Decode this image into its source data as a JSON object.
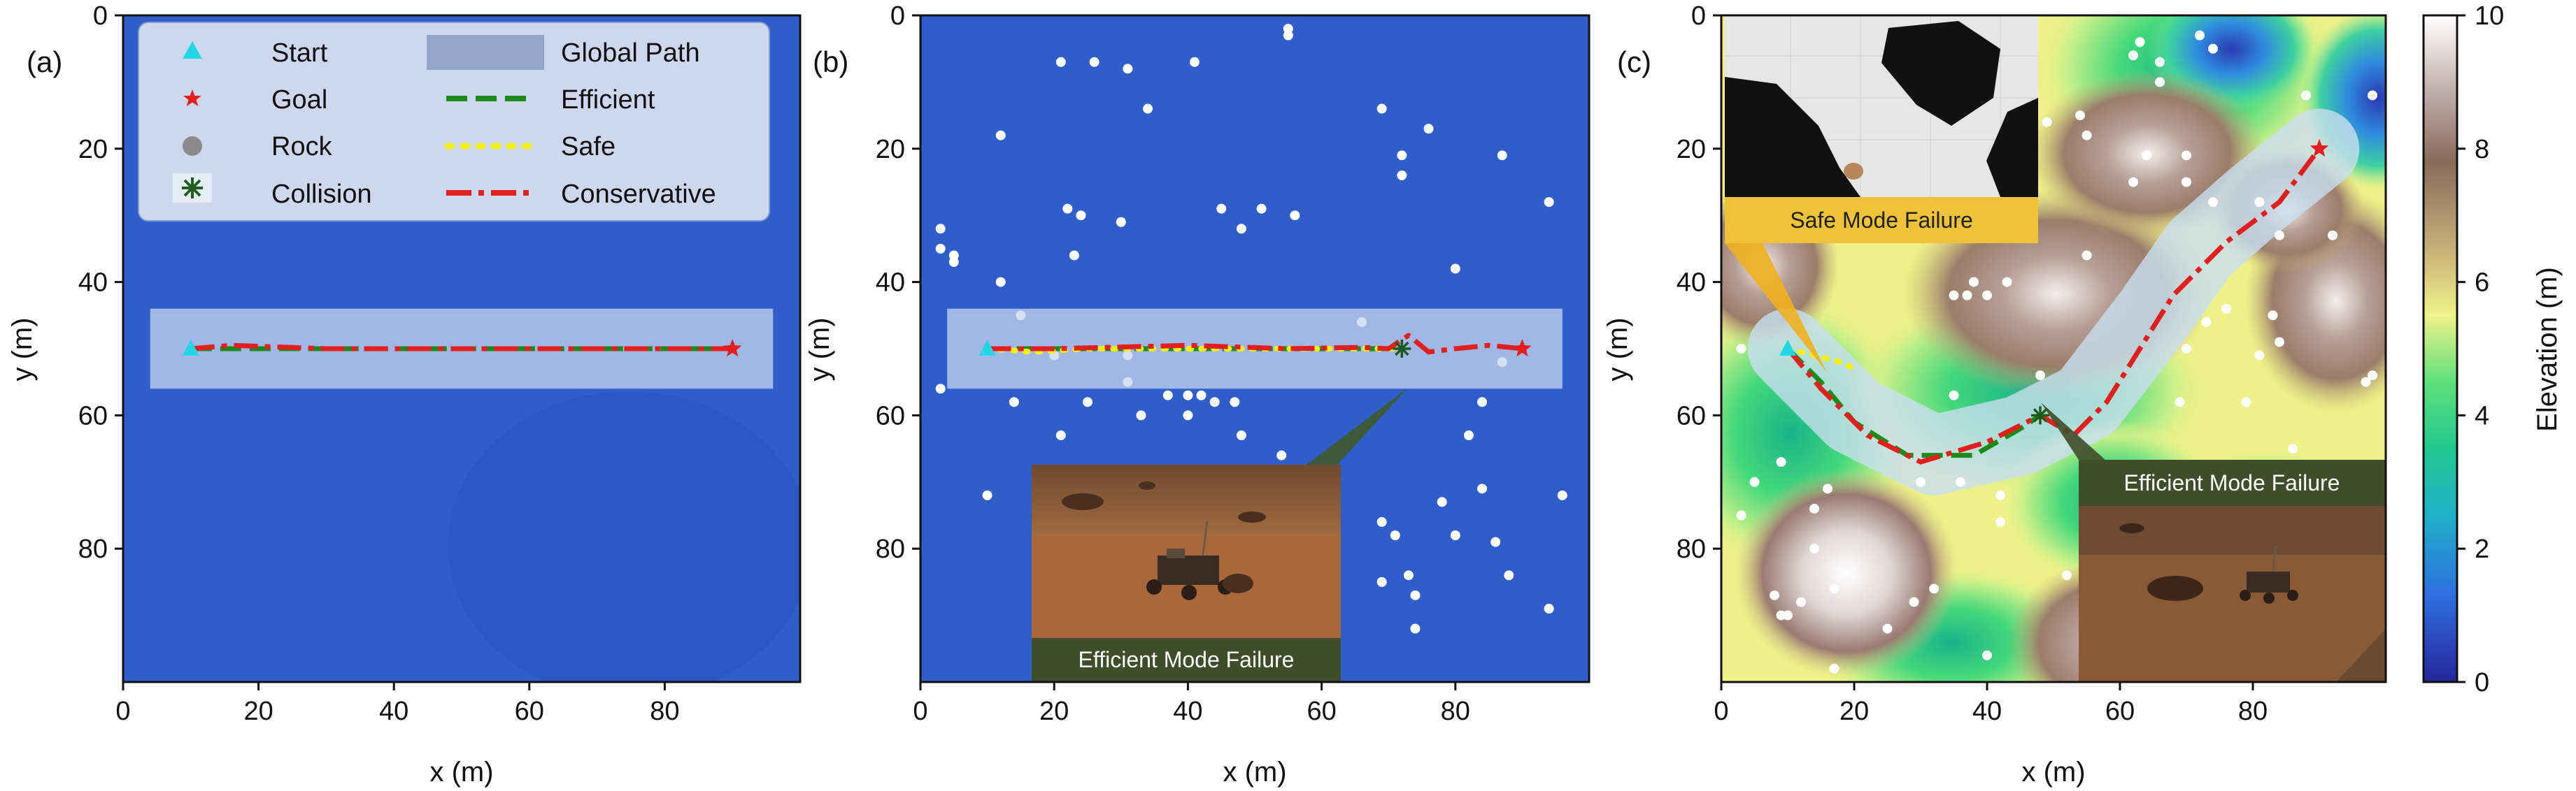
{
  "figure": {
    "colors": {
      "flat_background": "#2f5ec8",
      "path_band": "#c8d6f0",
      "efficient": "#1a8a1a",
      "safe": "#f2ee1a",
      "conservative": "#e21f1f",
      "start": "#22d6e6",
      "goal": "#e21f1f",
      "collision": "#1f5a1f",
      "rock": "#ffffff",
      "efficient_caption_bg": "#3f4d2a",
      "safe_caption_bg": "#f0c23a"
    },
    "legend": {
      "items": [
        {
          "label": "Start",
          "marker": "triangle-icon"
        },
        {
          "label": "Goal",
          "marker": "star-icon"
        },
        {
          "label": "Rock",
          "marker": "circle-icon"
        },
        {
          "label": "Collision",
          "marker": "asterisk-icon"
        },
        {
          "label": "Global Path",
          "marker": "band-icon"
        },
        {
          "label": "Efficient",
          "marker": "dashed-line-icon"
        },
        {
          "label": "Safe",
          "marker": "dotted-line-icon"
        },
        {
          "label": "Conservative",
          "marker": "dashdot-line-icon"
        }
      ]
    },
    "colorbar": {
      "label": "Elevation (m)",
      "ticks": [
        "0",
        "2",
        "4",
        "6",
        "8",
        "10"
      ],
      "range": [
        0,
        10
      ],
      "stops": [
        "#2a2aa8",
        "#2f7fe0",
        "#22c8a8",
        "#4ee070",
        "#f0f28a",
        "#c9b07a",
        "#8a6a5a",
        "#c8b8b8",
        "#ffffff"
      ]
    }
  },
  "chart_data": [
    {
      "type": "line",
      "panel_label": "(a)",
      "xlabel": "x (m)",
      "ylabel": "y (m)",
      "xlim": [
        0,
        100
      ],
      "ylim": [
        100,
        0
      ],
      "xticks": [
        "0",
        "20",
        "40",
        "60",
        "80"
      ],
      "yticks": [
        "0",
        "20",
        "40",
        "60",
        "80"
      ],
      "start": [
        10,
        50
      ],
      "goal": [
        90,
        50
      ],
      "global_path": [
        [
          10,
          50
        ],
        [
          90,
          50
        ]
      ],
      "series": [
        {
          "name": "Efficient",
          "points": [
            [
              10,
              50
            ],
            [
              30,
              50
            ],
            [
              50,
              50
            ],
            [
              70,
              50
            ],
            [
              90,
              50
            ]
          ]
        },
        {
          "name": "Conservative",
          "points": [
            [
              10,
              50
            ],
            [
              16,
              49.5
            ],
            [
              30,
              50
            ],
            [
              50,
              50
            ],
            [
              70,
              50
            ],
            [
              90,
              50
            ]
          ]
        }
      ],
      "rocks": []
    },
    {
      "type": "line",
      "panel_label": "(b)",
      "xlabel": "x (m)",
      "ylabel": "y (m)",
      "xlim": [
        0,
        100
      ],
      "ylim": [
        100,
        0
      ],
      "xticks": [
        "0",
        "20",
        "40",
        "60",
        "80"
      ],
      "yticks": [
        "0",
        "20",
        "40",
        "60",
        "80"
      ],
      "start": [
        10,
        50
      ],
      "goal": [
        90,
        50
      ],
      "collision": [
        72,
        50
      ],
      "global_path": [
        [
          10,
          50
        ],
        [
          90,
          50
        ]
      ],
      "series": [
        {
          "name": "Efficient",
          "points": [
            [
              10,
              50
            ],
            [
              30,
              50
            ],
            [
              50,
              50
            ],
            [
              65,
              50
            ],
            [
              72,
              50
            ]
          ]
        },
        {
          "name": "Safe",
          "points": [
            [
              10,
              50
            ],
            [
              17,
              50.5
            ],
            [
              25,
              50
            ],
            [
              40,
              50
            ],
            [
              55,
              50
            ],
            [
              72,
              50
            ]
          ]
        },
        {
          "name": "Conservative",
          "points": [
            [
              10,
              50
            ],
            [
              20,
              50
            ],
            [
              40,
              49.5
            ],
            [
              55,
              50
            ],
            [
              66,
              49.8
            ],
            [
              70,
              50
            ],
            [
              73,
              48
            ],
            [
              76,
              50.5
            ],
            [
              80,
              50
            ],
            [
              85,
              49.5
            ],
            [
              90,
              50
            ]
          ]
        }
      ],
      "rocks": [
        [
          55,
          2
        ],
        [
          55,
          3
        ],
        [
          21,
          7
        ],
        [
          26,
          7
        ],
        [
          31,
          8
        ],
        [
          41,
          7
        ],
        [
          34,
          14
        ],
        [
          12,
          18
        ],
        [
          69,
          14
        ],
        [
          76,
          17
        ],
        [
          72,
          21
        ],
        [
          72,
          24
        ],
        [
          87,
          21
        ],
        [
          22,
          29
        ],
        [
          24,
          30
        ],
        [
          45,
          29
        ],
        [
          48,
          32
        ],
        [
          51,
          29
        ],
        [
          56,
          30
        ],
        [
          30,
          31
        ],
        [
          3,
          32
        ],
        [
          3,
          35
        ],
        [
          5,
          36
        ],
        [
          5,
          37
        ],
        [
          23,
          36
        ],
        [
          12,
          40
        ],
        [
          94,
          28
        ],
        [
          80,
          38
        ],
        [
          66,
          46
        ],
        [
          15,
          45
        ],
        [
          20,
          51
        ],
        [
          31,
          51
        ],
        [
          87,
          52
        ],
        [
          3,
          56
        ],
        [
          31,
          55
        ],
        [
          14,
          58
        ],
        [
          25,
          58
        ],
        [
          40,
          57
        ],
        [
          33,
          60
        ],
        [
          37,
          57
        ],
        [
          42,
          57
        ],
        [
          44,
          58
        ],
        [
          47,
          58
        ],
        [
          48,
          63
        ],
        [
          40,
          60
        ],
        [
          21,
          63
        ],
        [
          54,
          66
        ],
        [
          84,
          58
        ],
        [
          82,
          63
        ],
        [
          10,
          72
        ],
        [
          96,
          72
        ],
        [
          69,
          76
        ],
        [
          71,
          78
        ],
        [
          78,
          73
        ],
        [
          84,
          71
        ],
        [
          80,
          78
        ],
        [
          86,
          79
        ],
        [
          73,
          84
        ],
        [
          69,
          85
        ],
        [
          74,
          87
        ],
        [
          74,
          92
        ],
        [
          88,
          84
        ],
        [
          94,
          89
        ]
      ],
      "inset_caption": "Efficient Mode Failure"
    },
    {
      "type": "heatmap",
      "panel_label": "(c)",
      "xlabel": "x (m)",
      "ylabel": "y (m)",
      "xlim": [
        0,
        100
      ],
      "ylim": [
        100,
        0
      ],
      "xticks": [
        "0",
        "20",
        "40",
        "60",
        "80"
      ],
      "yticks": [
        "0",
        "20",
        "40",
        "60",
        "80"
      ],
      "start": [
        10,
        50
      ],
      "goal": [
        90,
        20
      ],
      "collision": [
        48,
        60
      ],
      "global_path": [
        [
          10,
          50
        ],
        [
          20,
          60
        ],
        [
          32,
          66
        ],
        [
          45,
          63
        ],
        [
          55,
          58
        ],
        [
          65,
          45
        ],
        [
          72,
          35
        ],
        [
          80,
          28
        ],
        [
          90,
          20
        ]
      ],
      "series": [
        {
          "name": "Efficient",
          "points": [
            [
              10,
              50
            ],
            [
              15,
              55
            ],
            [
              20,
              61
            ],
            [
              28,
              66
            ],
            [
              38,
              66
            ],
            [
              45,
              62
            ],
            [
              48,
              60
            ]
          ]
        },
        {
          "name": "Safe",
          "points": [
            [
              10,
              50
            ],
            [
              14,
              51
            ],
            [
              18,
              52
            ],
            [
              20,
              53
            ]
          ]
        },
        {
          "name": "Conservative",
          "points": [
            [
              10,
              50
            ],
            [
              15,
              56
            ],
            [
              22,
              63
            ],
            [
              30,
              67
            ],
            [
              40,
              64
            ],
            [
              48,
              60
            ],
            [
              53,
              63
            ],
            [
              58,
              58
            ],
            [
              63,
              50
            ],
            [
              68,
              42
            ],
            [
              76,
              34
            ],
            [
              84,
              28
            ],
            [
              90,
              20
            ]
          ]
        }
      ],
      "rocks": [
        [
          72,
          3
        ],
        [
          74,
          5
        ],
        [
          63,
          4
        ],
        [
          62,
          6
        ],
        [
          66,
          7
        ],
        [
          66,
          10
        ],
        [
          88,
          12
        ],
        [
          98,
          12
        ],
        [
          54,
          15
        ],
        [
          49,
          16
        ],
        [
          55,
          18
        ],
        [
          64,
          21
        ],
        [
          62,
          25
        ],
        [
          70,
          25
        ],
        [
          70,
          21
        ],
        [
          74,
          28
        ],
        [
          81,
          28
        ],
        [
          92,
          33
        ],
        [
          84,
          33
        ],
        [
          83,
          45
        ],
        [
          76,
          44
        ],
        [
          73,
          46
        ],
        [
          70,
          50
        ],
        [
          84,
          49
        ],
        [
          81,
          51
        ],
        [
          55,
          36
        ],
        [
          38,
          40
        ],
        [
          35,
          42
        ],
        [
          37,
          42
        ],
        [
          40,
          42
        ],
        [
          43,
          40
        ],
        [
          3,
          50
        ],
        [
          48,
          54
        ],
        [
          35,
          57
        ],
        [
          98,
          54
        ],
        [
          97,
          55
        ],
        [
          69,
          58
        ],
        [
          79,
          58
        ],
        [
          86,
          65
        ],
        [
          9,
          67
        ],
        [
          5,
          70
        ],
        [
          16,
          71
        ],
        [
          14,
          74
        ],
        [
          30,
          70
        ],
        [
          36,
          70
        ],
        [
          42,
          72
        ],
        [
          3,
          75
        ],
        [
          14,
          80
        ],
        [
          42,
          76
        ],
        [
          32,
          86
        ],
        [
          17,
          86
        ],
        [
          8,
          87
        ],
        [
          10,
          90
        ],
        [
          9,
          90
        ],
        [
          12,
          88
        ],
        [
          29,
          88
        ],
        [
          25,
          92
        ],
        [
          40,
          96
        ],
        [
          17,
          98
        ],
        [
          52,
          84
        ]
      ],
      "inset_top_caption": "Safe Mode Failure",
      "inset_bottom_caption": "Efficient Mode Failure"
    }
  ]
}
